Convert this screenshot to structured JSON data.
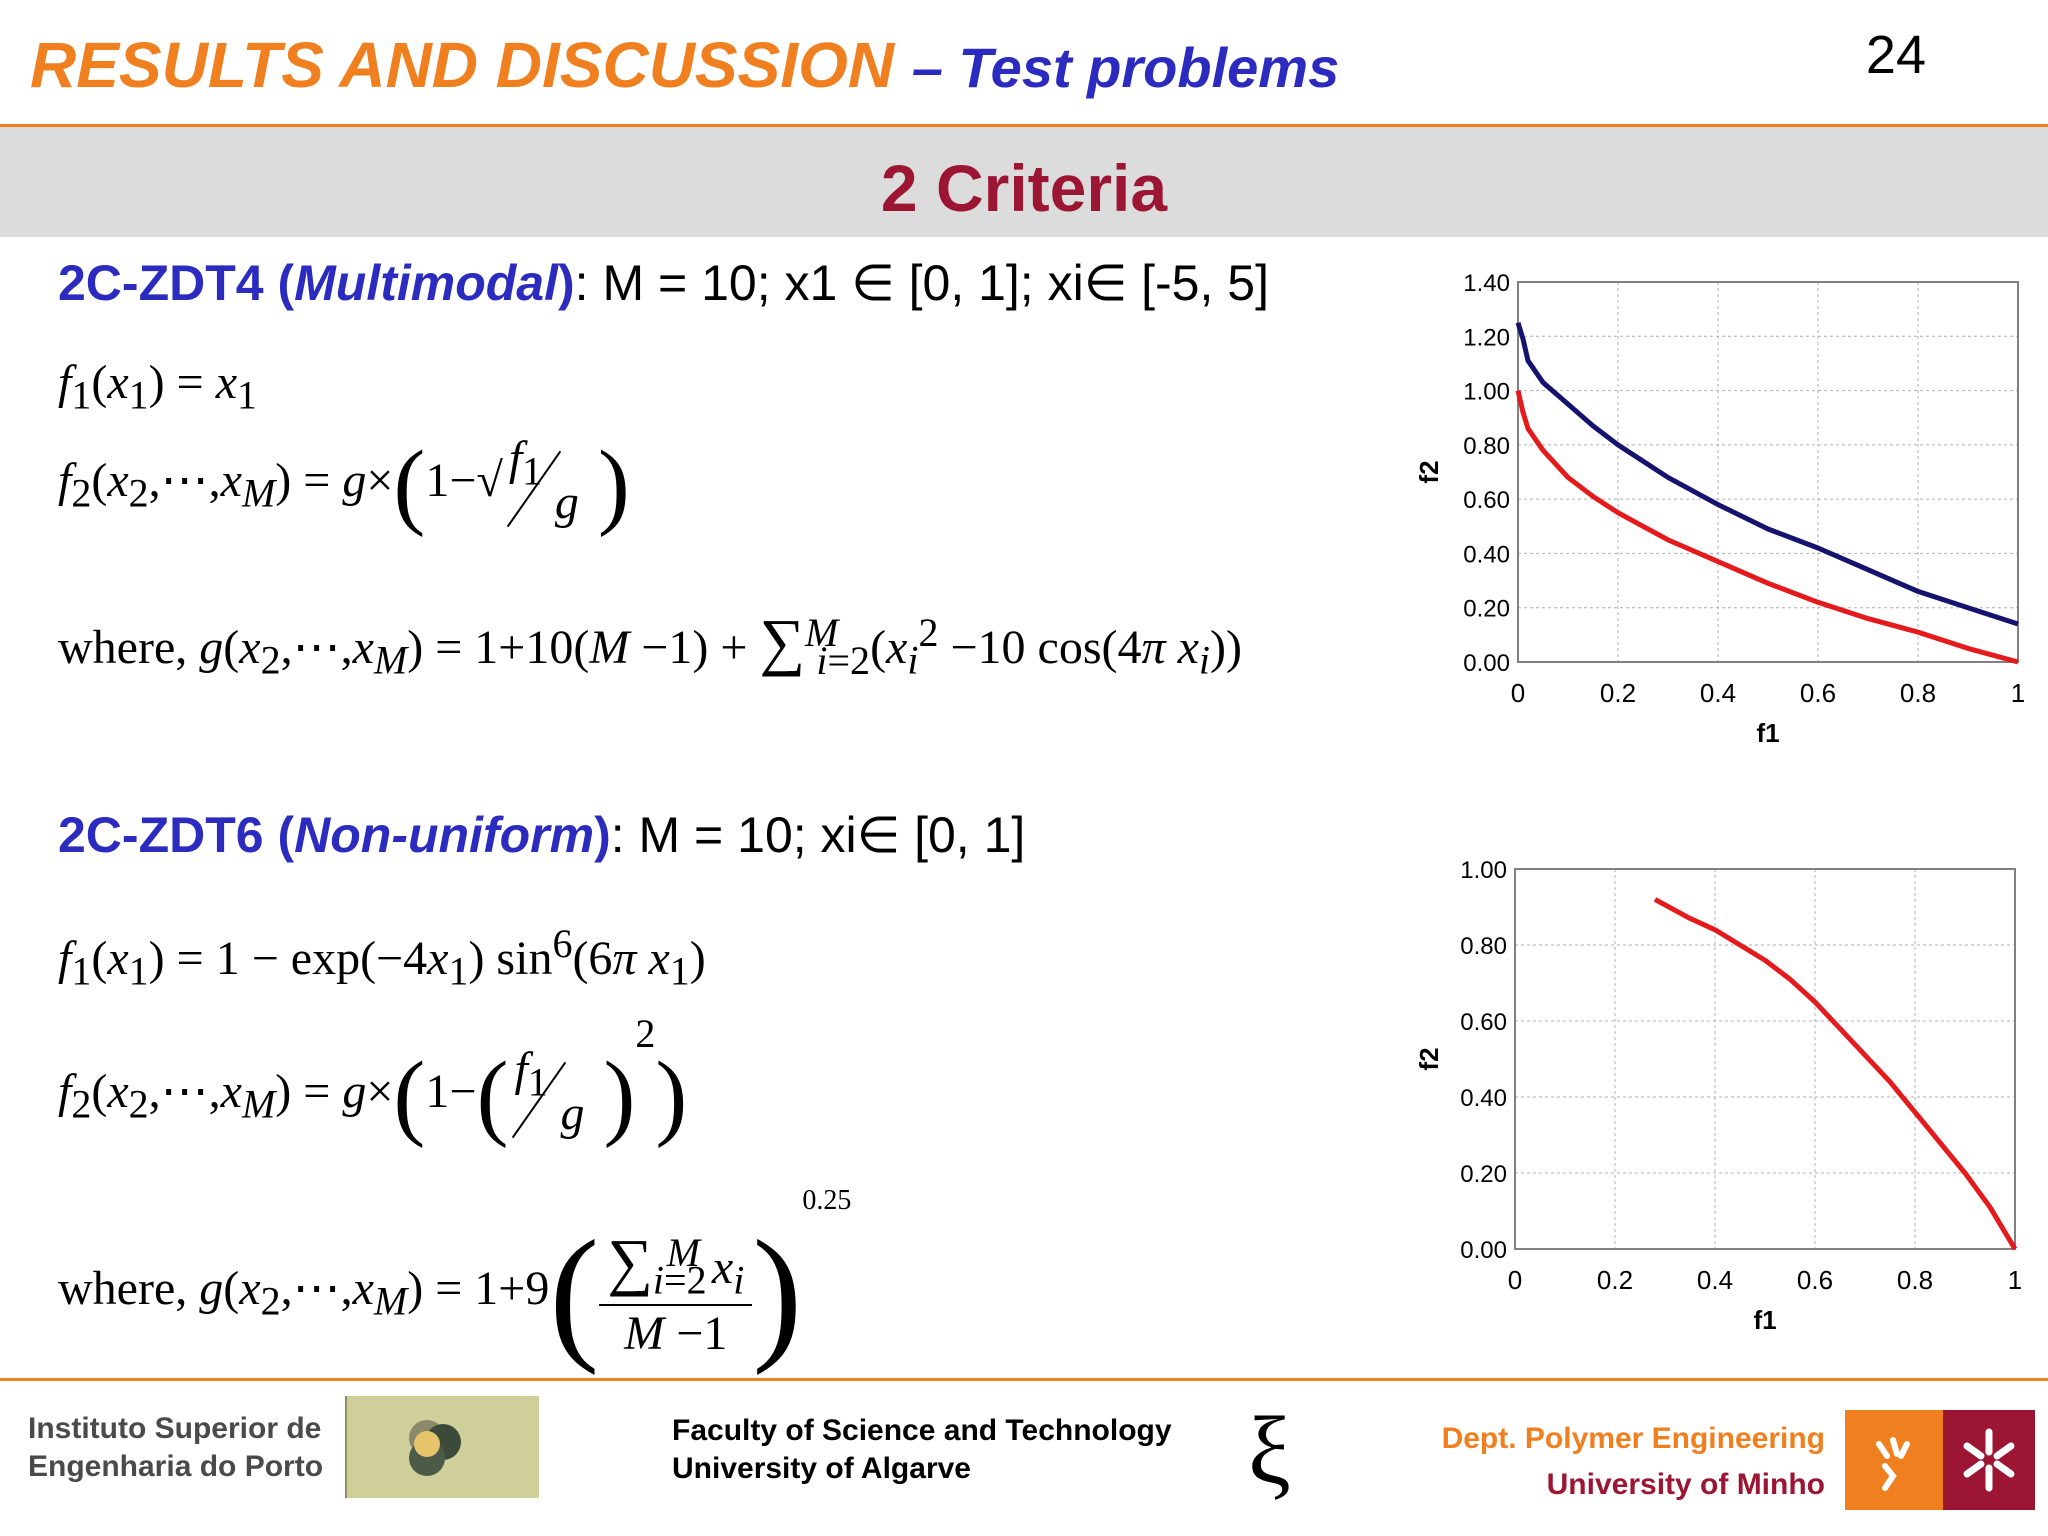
{
  "header": {
    "title": "RESULTS AND DISCUSSION",
    "subtitle": "– Test problems",
    "page_number": "24",
    "section": "2 Criteria"
  },
  "zdt4": {
    "name": "2C-ZDT4",
    "type": "Multimodal",
    "params_text": ": M = 10; x1 ∈ [0, 1]; xi∈ [-5, 5]"
  },
  "zdt6": {
    "name": "2C-ZDT6",
    "type": "Non-uniform",
    "params_text": ": M = 10; xi∈ [0, 1]"
  },
  "chart_data": [
    {
      "type": "line",
      "xlabel": "f1",
      "ylabel": "f2",
      "xlim": [
        0,
        1
      ],
      "ylim": [
        0,
        1.4
      ],
      "x_ticks": [
        "0",
        "0.2",
        "0.4",
        "0.6",
        "0.8",
        "1"
      ],
      "y_ticks": [
        "0.00",
        "0.20",
        "0.40",
        "0.60",
        "0.80",
        "1.00",
        "1.20",
        "1.40"
      ],
      "grid": true,
      "colors": [
        "#14146e",
        "#e41a1c"
      ],
      "series": [
        {
          "x": [
            0,
            0.01,
            0.02,
            0.05,
            0.1,
            0.15,
            0.2,
            0.25,
            0.3,
            0.4,
            0.5,
            0.6,
            0.7,
            0.8,
            0.9,
            1.0
          ],
          "values": [
            1.25,
            1.19,
            1.11,
            1.03,
            0.95,
            0.87,
            0.8,
            0.74,
            0.68,
            0.58,
            0.49,
            0.42,
            0.34,
            0.26,
            0.2,
            0.14
          ]
        },
        {
          "x": [
            0,
            0.01,
            0.02,
            0.05,
            0.1,
            0.15,
            0.2,
            0.25,
            0.3,
            0.4,
            0.5,
            0.6,
            0.7,
            0.8,
            0.9,
            1.0
          ],
          "values": [
            1.0,
            0.92,
            0.86,
            0.78,
            0.68,
            0.61,
            0.55,
            0.5,
            0.45,
            0.37,
            0.29,
            0.22,
            0.16,
            0.11,
            0.05,
            0.0
          ]
        }
      ]
    },
    {
      "type": "line",
      "xlabel": "f1",
      "ylabel": "f2",
      "xlim": [
        0,
        1
      ],
      "ylim": [
        0,
        1
      ],
      "x_ticks": [
        "0",
        "0.2",
        "0.4",
        "0.6",
        "0.8",
        "1"
      ],
      "y_ticks": [
        "0.00",
        "0.20",
        "0.40",
        "0.60",
        "0.80",
        "1.00"
      ],
      "grid": true,
      "colors": [
        "#e41a1c"
      ],
      "series": [
        {
          "x": [
            0.28,
            0.35,
            0.4,
            0.45,
            0.5,
            0.55,
            0.6,
            0.65,
            0.7,
            0.75,
            0.8,
            0.85,
            0.9,
            0.95,
            1.0
          ],
          "values": [
            0.92,
            0.87,
            0.84,
            0.8,
            0.76,
            0.71,
            0.65,
            0.58,
            0.51,
            0.44,
            0.36,
            0.28,
            0.2,
            0.11,
            0.0
          ]
        }
      ]
    }
  ],
  "footer": {
    "left_line1": "Instituto Superior de",
    "left_line2": "Engenharia do Porto",
    "center_line1": "Faculty of Science and Technology",
    "center_line2": "University of Algarve",
    "xi_symbol": "ξ",
    "right_line1": "Dept. Polymer Engineering",
    "right_line2": "University of Minho",
    "accent_orange": "#f07f1f",
    "accent_red": "#9c1533"
  }
}
